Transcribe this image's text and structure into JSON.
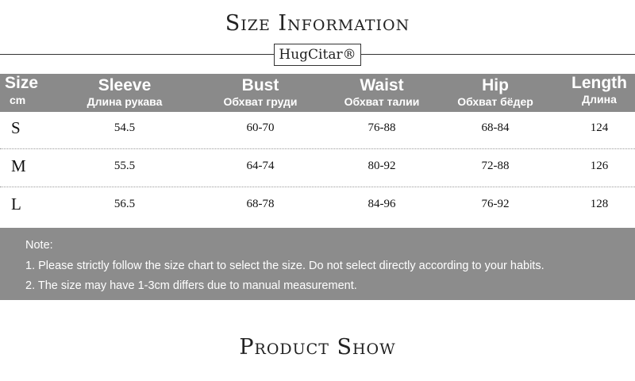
{
  "header": {
    "title": "Size Information",
    "brand": "HugCitar®"
  },
  "table": {
    "columns": [
      {
        "name": "Size",
        "sub": "cm"
      },
      {
        "name": "Sleeve",
        "sub": "Длина рукава"
      },
      {
        "name": "Bust",
        "sub": "Обхват груди"
      },
      {
        "name": "Waist",
        "sub": "Обхват талии"
      },
      {
        "name": "Hip",
        "sub": "Обхват бёдер"
      },
      {
        "name": "Length",
        "sub": "Длина"
      }
    ],
    "rows": [
      [
        "S",
        "54.5",
        "60-70",
        "76-88",
        "68-84",
        "124"
      ],
      [
        "M",
        "55.5",
        "64-74",
        "80-92",
        "72-88",
        "126"
      ],
      [
        "L",
        "56.5",
        "68-78",
        "84-96",
        "76-92",
        "128"
      ]
    ]
  },
  "notes": {
    "heading": "Note:",
    "items": [
      "1. Please strictly follow the size chart to select the size. Do not select directly according to your habits.",
      "2. The size may have 1-3cm differs due to manual measurement."
    ]
  },
  "footer": {
    "title": "Product Show"
  }
}
